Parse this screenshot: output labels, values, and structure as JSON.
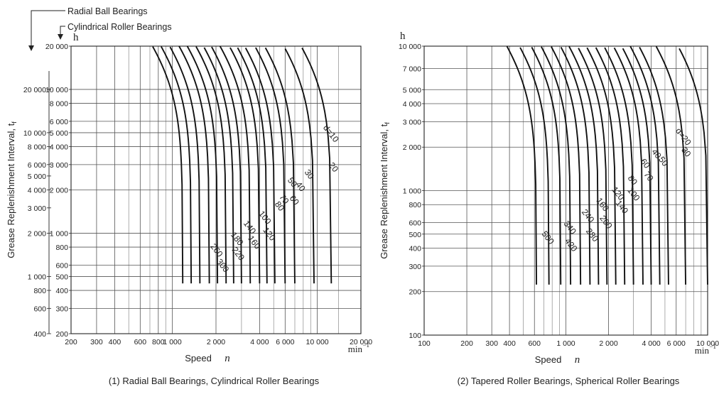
{
  "chart_data": [
    {
      "type": "line",
      "caption": "(1) Radial Ball Bearings, Cylindrical Roller Bearings",
      "ylabel": "Grease Replenishment Interval, t",
      "ylabel_sub": "f",
      "xlabel": "Speed",
      "x_symbol": "n",
      "x_unit": "min",
      "x_unit_exp": "−1",
      "y_unit": "h",
      "scale": "log-log",
      "axis_header_outer": "Radial Ball Bearings",
      "axis_header_inner": "Cylindrical Roller Bearings",
      "x_range": [
        200,
        20000
      ],
      "y_range": [
        200,
        20000
      ],
      "x_ticks": [
        {
          "v": 200,
          "label": "200"
        },
        {
          "v": 300,
          "label": "300"
        },
        {
          "v": 400,
          "label": "400"
        },
        {
          "v": 600,
          "label": "600"
        },
        {
          "v": 800,
          "label": "800"
        },
        {
          "v": 1000,
          "label": "1 000"
        },
        {
          "v": 2000,
          "label": "2 000"
        },
        {
          "v": 4000,
          "label": "4 000"
        },
        {
          "v": 6000,
          "label": "6 000"
        },
        {
          "v": 10000,
          "label": "10 000"
        },
        {
          "v": 20000,
          "label": "20 000"
        }
      ],
      "y_ticks_inner": [
        {
          "v": 200,
          "label": "200"
        },
        {
          "v": 300,
          "label": "300"
        },
        {
          "v": 400,
          "label": "400"
        },
        {
          "v": 500,
          "label": "500"
        },
        {
          "v": 600,
          "label": "600"
        },
        {
          "v": 800,
          "label": "800"
        },
        {
          "v": 1000,
          "label": "1 000"
        },
        {
          "v": 2000,
          "label": "2 000"
        },
        {
          "v": 3000,
          "label": "3 000"
        },
        {
          "v": 4000,
          "label": "4 000"
        },
        {
          "v": 5000,
          "label": "5 000"
        },
        {
          "v": 6000,
          "label": "6 000"
        },
        {
          "v": 8000,
          "label": "8 000"
        },
        {
          "v": 10000,
          "label": "10 000"
        },
        {
          "v": 20000,
          "label": "20 000"
        }
      ],
      "y_ticks_outer": [
        {
          "label": "400",
          "at": 200
        },
        {
          "label": "600",
          "at": 300
        },
        {
          "label": "800",
          "at": 400
        },
        {
          "label": "1 000",
          "at": 500
        },
        {
          "label": "2 000",
          "at": 1000
        },
        {
          "label": "3 000",
          "at": 1500
        },
        {
          "label": "4 000",
          "at": 2000
        },
        {
          "label": "5 000",
          "at": 2500
        },
        {
          "label": "6 000",
          "at": 3000
        },
        {
          "label": "8 000",
          "at": 4000
        },
        {
          "label": "10 000",
          "at": 5000
        },
        {
          "label": "20 000",
          "at": 10000
        }
      ],
      "grid": true,
      "series": [
        {
          "label": "d=10",
          "nl": 12500,
          "hi": 20000,
          "sl": 1.0,
          "ce": 0.5
        },
        {
          "label": "20",
          "nl": 9500,
          "hi": 20000,
          "sl": 1.0,
          "ce": 0.5
        },
        {
          "label": "30",
          "nl": 7000,
          "hi": 20000,
          "sl": 1.0,
          "ce": 0.5
        },
        {
          "label": "40",
          "nl": 6000,
          "hi": 20000,
          "sl": 1.0,
          "ce": 0.5
        },
        {
          "label": "50",
          "nl": 5100,
          "hi": 20000,
          "sl": 1.0,
          "ce": 0.5
        },
        {
          "label": "60",
          "nl": 4500,
          "hi": 20000,
          "sl": 1.0,
          "ce": 0.5
        },
        {
          "label": "70",
          "nl": 4000,
          "hi": 20000,
          "sl": 1.0,
          "ce": 0.5
        },
        {
          "label": "80",
          "nl": 3450,
          "hi": 20000,
          "sl": 1.0,
          "ce": 0.5
        },
        {
          "label": "100",
          "nl": 3000,
          "hi": 20000,
          "sl": 1.0,
          "ce": 0.5
        },
        {
          "label": "120",
          "nl": 2650,
          "hi": 20000,
          "sl": 1.0,
          "ce": 0.5
        },
        {
          "label": "140",
          "nl": 2350,
          "hi": 20000,
          "sl": 1.0,
          "ce": 0.5
        },
        {
          "label": "160",
          "nl": 2050,
          "hi": 20000,
          "sl": 1.0,
          "ce": 0.5
        },
        {
          "label": "180",
          "nl": 1800,
          "hi": 20000,
          "sl": 1.0,
          "ce": 0.5
        },
        {
          "label": "220",
          "nl": 1550,
          "hi": 20000,
          "sl": 1.0,
          "ce": 0.5
        },
        {
          "label": "260",
          "nl": 1350,
          "hi": 20000,
          "sl": 1.0,
          "ce": 0.5
        },
        {
          "label": "300",
          "nl": 1180,
          "hi": 20000,
          "sl": 1.0,
          "ce": 0.5
        }
      ],
      "label_pos": [
        {
          "x": 12000,
          "y": 4800
        },
        {
          "x": 12500,
          "y": 2800
        },
        {
          "x": 8500,
          "y": 2500
        },
        {
          "x": 7400,
          "y": 2050
        },
        {
          "x": 6500,
          "y": 2200
        },
        {
          "x": 6700,
          "y": 1650
        },
        {
          "x": 5700,
          "y": 1680
        },
        {
          "x": 5300,
          "y": 1500
        },
        {
          "x": 4200,
          "y": 1250
        },
        {
          "x": 4500,
          "y": 960
        },
        {
          "x": 3300,
          "y": 1070
        },
        {
          "x": 3550,
          "y": 840
        },
        {
          "x": 2700,
          "y": 890
        },
        {
          "x": 2750,
          "y": 700
        },
        {
          "x": 1950,
          "y": 740
        },
        {
          "x": 2150,
          "y": 580
        }
      ]
    },
    {
      "type": "line",
      "caption": "(2) Tapered Roller Bearings, Spherical Roller Bearings",
      "ylabel": "Grease Replenishment Interval, t",
      "ylabel_sub": "f",
      "xlabel": "Speed",
      "x_symbol": "n",
      "x_unit": "min",
      "x_unit_exp": "−1",
      "y_unit": "h",
      "scale": "log-log",
      "x_range": [
        100,
        10000
      ],
      "y_range": [
        100,
        10000
      ],
      "x_ticks": [
        {
          "v": 100,
          "label": "100"
        },
        {
          "v": 200,
          "label": "200"
        },
        {
          "v": 300,
          "label": "300"
        },
        {
          "v": 400,
          "label": "400"
        },
        {
          "v": 600,
          "label": "600"
        },
        {
          "v": 1000,
          "label": "1 000"
        },
        {
          "v": 2000,
          "label": "2 000"
        },
        {
          "v": 4000,
          "label": "4 000"
        },
        {
          "v": 6000,
          "label": "6 000"
        },
        {
          "v": 10000,
          "label": "10 000"
        }
      ],
      "y_ticks_inner": [
        {
          "v": 100,
          "label": "100"
        },
        {
          "v": 200,
          "label": "200"
        },
        {
          "v": 300,
          "label": "300"
        },
        {
          "v": 400,
          "label": "400"
        },
        {
          "v": 500,
          "label": "500"
        },
        {
          "v": 600,
          "label": "600"
        },
        {
          "v": 800,
          "label": "800"
        },
        {
          "v": 1000,
          "label": "1 000"
        },
        {
          "v": 2000,
          "label": "2 000"
        },
        {
          "v": 3000,
          "label": "3 000"
        },
        {
          "v": 4000,
          "label": "4 000"
        },
        {
          "v": 5000,
          "label": "5 000"
        },
        {
          "v": 7000,
          "label": "7 000"
        },
        {
          "v": 10000,
          "label": "10 000"
        }
      ],
      "grid": true,
      "series": [
        {
          "label": "d=20",
          "nl": 10000,
          "hi": 10000,
          "sl": 1.0,
          "ce": 0.5
        },
        {
          "label": "30",
          "nl": 7000,
          "hi": 10000,
          "sl": 1.0,
          "ce": 0.5
        },
        {
          "label": "40",
          "nl": 5300,
          "hi": 10000,
          "sl": 1.0,
          "ce": 0.5
        },
        {
          "label": "50",
          "nl": 4600,
          "hi": 10000,
          "sl": 1.0,
          "ce": 0.5
        },
        {
          "label": "60",
          "nl": 4000,
          "hi": 10000,
          "sl": 1.0,
          "ce": 0.5
        },
        {
          "label": "70",
          "nl": 3500,
          "hi": 10000,
          "sl": 1.0,
          "ce": 0.5
        },
        {
          "label": "80",
          "nl": 3000,
          "hi": 10000,
          "sl": 1.0,
          "ce": 0.5
        },
        {
          "label": "100",
          "nl": 2600,
          "hi": 10000,
          "sl": 1.0,
          "ce": 0.5
        },
        {
          "label": "120",
          "nl": 2250,
          "hi": 10000,
          "sl": 1.0,
          "ce": 0.5
        },
        {
          "label": "140",
          "nl": 1950,
          "hi": 10000,
          "sl": 1.0,
          "ce": 0.5
        },
        {
          "label": "160",
          "nl": 1700,
          "hi": 10000,
          "sl": 1.0,
          "ce": 0.5
        },
        {
          "label": "200",
          "nl": 1480,
          "hi": 10000,
          "sl": 1.0,
          "ce": 0.5
        },
        {
          "label": "240",
          "nl": 1270,
          "hi": 10000,
          "sl": 1.0,
          "ce": 0.5
        },
        {
          "label": "280",
          "nl": 1080,
          "hi": 10000,
          "sl": 1.0,
          "ce": 0.5
        },
        {
          "label": "340",
          "nl": 920,
          "hi": 10000,
          "sl": 1.0,
          "ce": 0.5
        },
        {
          "label": "420",
          "nl": 760,
          "hi": 10000,
          "sl": 1.0,
          "ce": 0.5
        },
        {
          "label": "500",
          "nl": 620,
          "hi": 10000,
          "sl": 1.0,
          "ce": 0.5
        }
      ],
      "label_pos": [
        {
          "x": 6500,
          "y": 2300
        },
        {
          "x": 6800,
          "y": 1800
        },
        {
          "x": 4200,
          "y": 1750
        },
        {
          "x": 4700,
          "y": 1550
        },
        {
          "x": 3500,
          "y": 1500
        },
        {
          "x": 3700,
          "y": 1220
        },
        {
          "x": 2850,
          "y": 1150
        },
        {
          "x": 2900,
          "y": 920
        },
        {
          "x": 2250,
          "y": 930
        },
        {
          "x": 2400,
          "y": 750
        },
        {
          "x": 1750,
          "y": 780
        },
        {
          "x": 1850,
          "y": 590
        },
        {
          "x": 1380,
          "y": 650
        },
        {
          "x": 1480,
          "y": 480
        },
        {
          "x": 1030,
          "y": 540
        },
        {
          "x": 1050,
          "y": 410
        },
        {
          "x": 720,
          "y": 460
        }
      ]
    }
  ]
}
